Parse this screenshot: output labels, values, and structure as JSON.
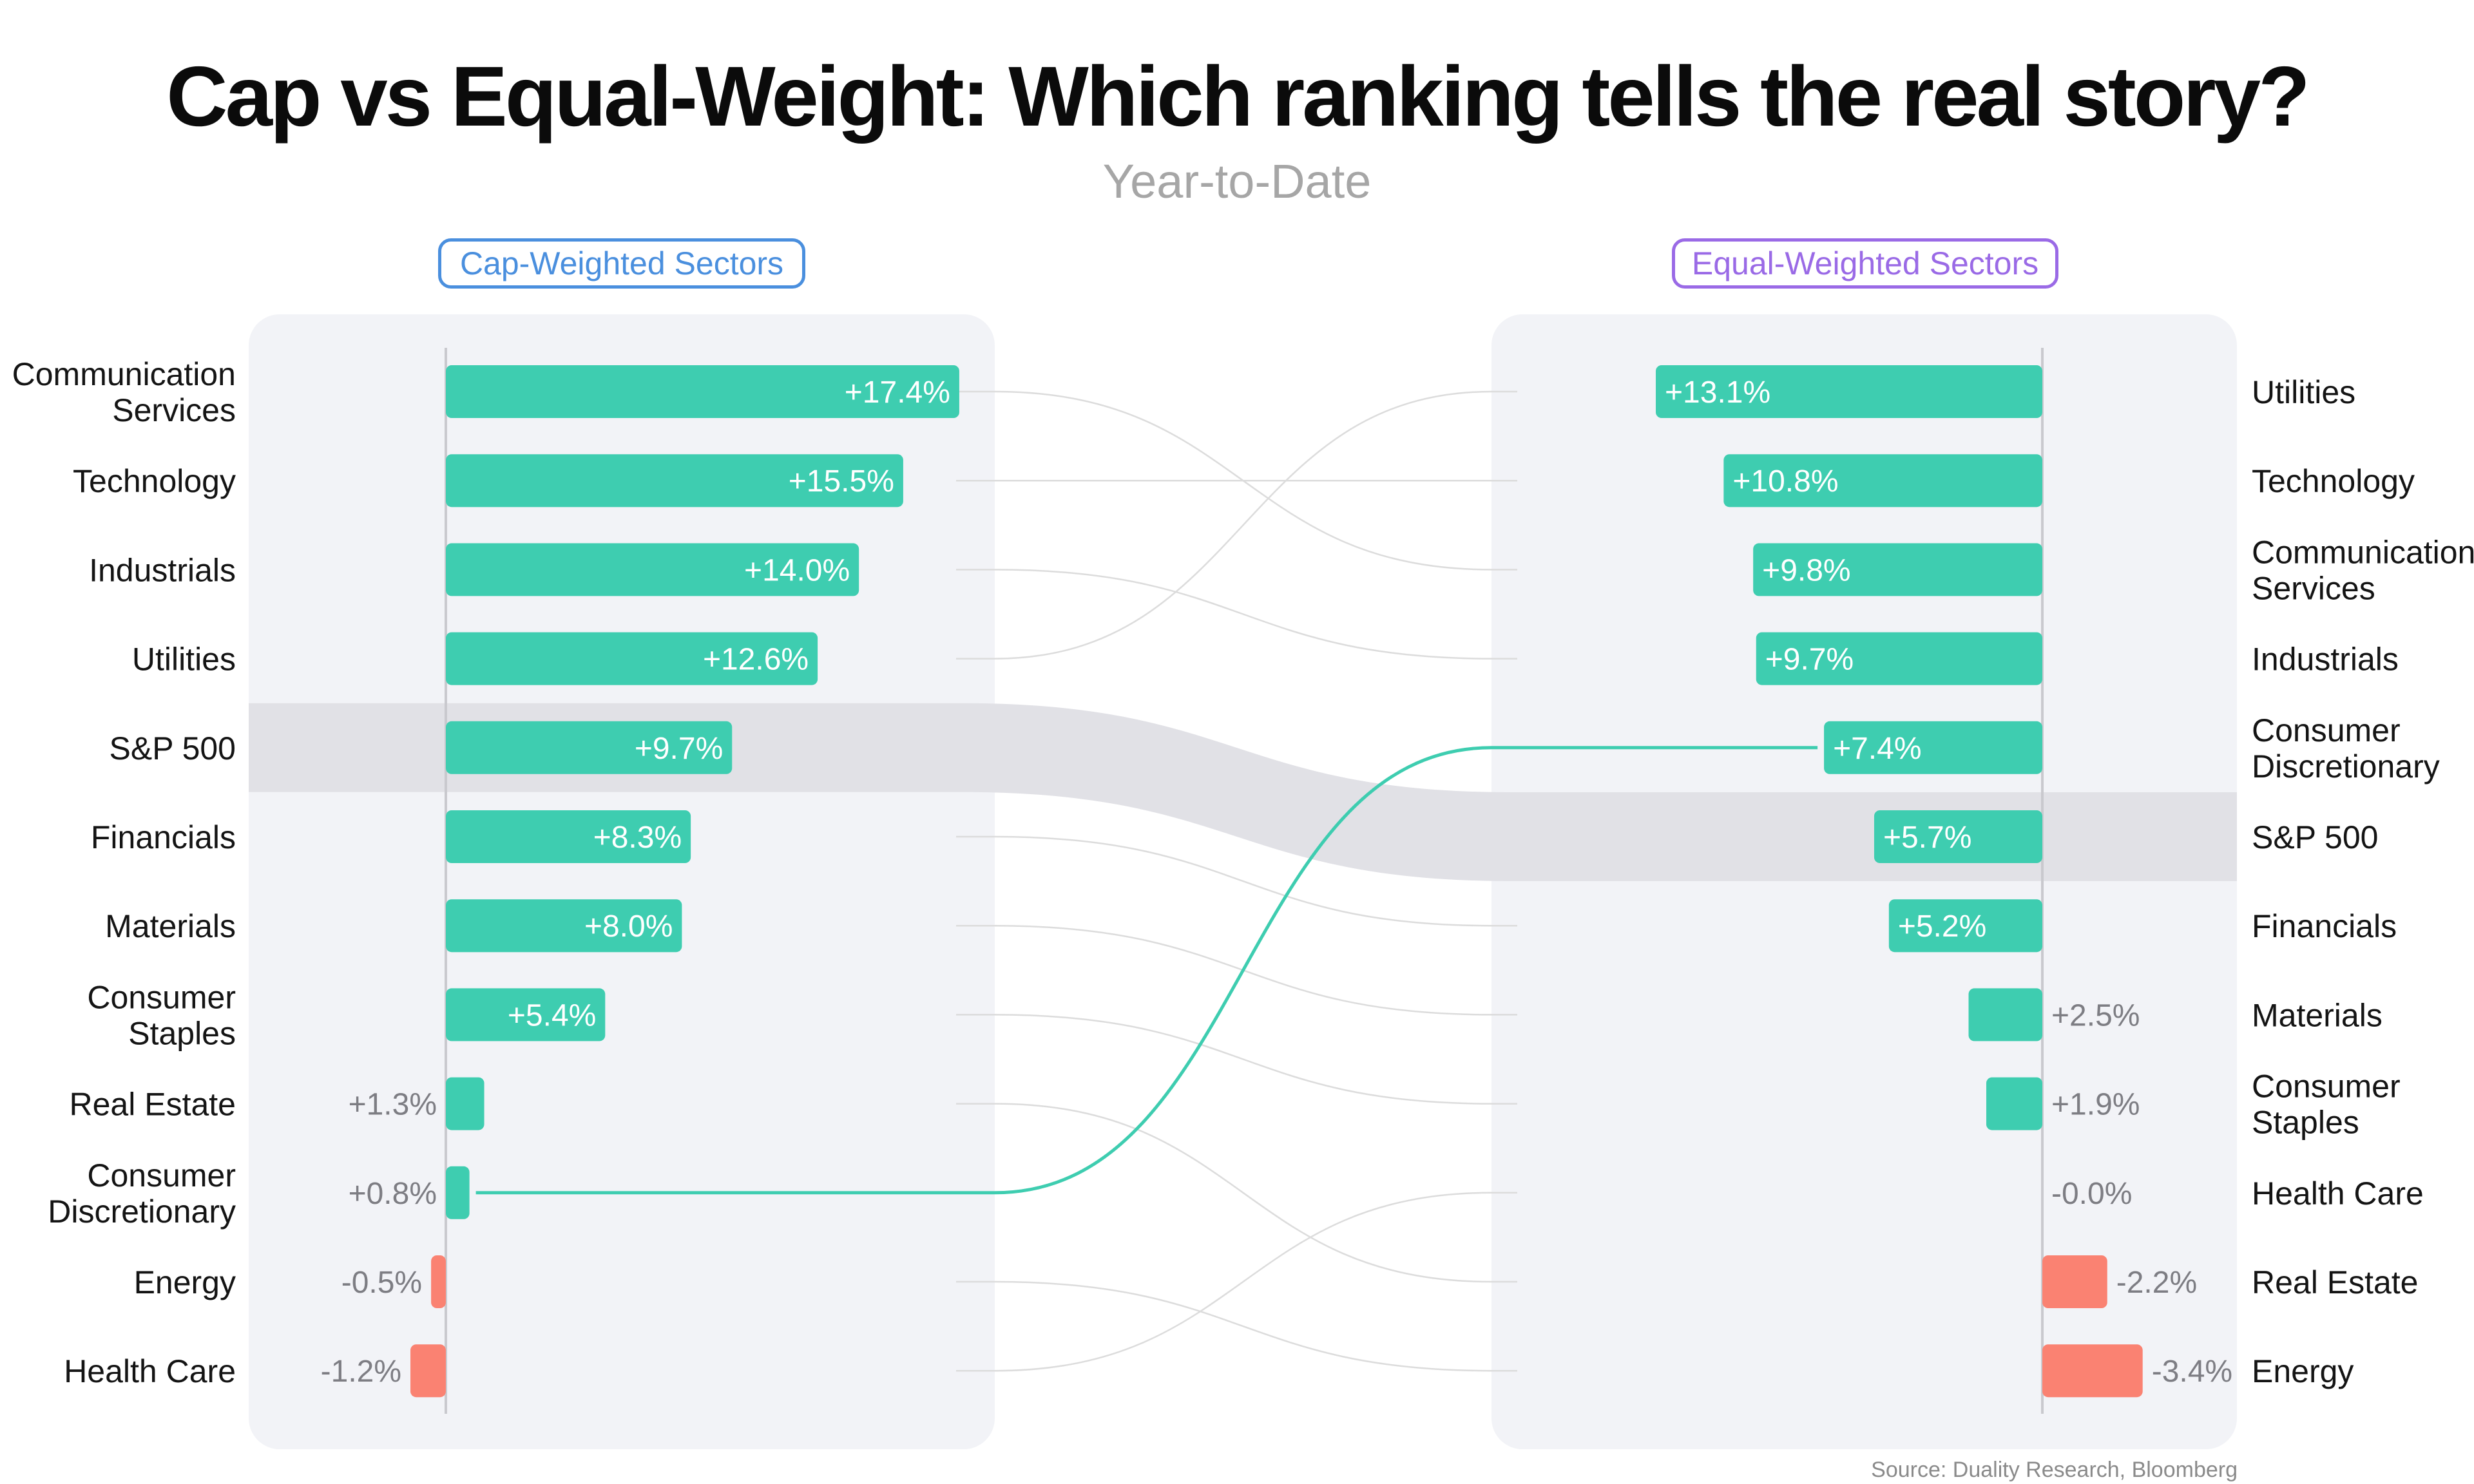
{
  "title": "Cap vs Equal-Weight: Which ranking tells the real story?",
  "subtitle": "Year-to-Date",
  "cap_label": "Cap-Weighted Sectors",
  "equal_label": "Equal-Weighted Sectors",
  "source": "Source: Duality Research, Bloomberg",
  "colors": {
    "positive": "#3ecdb0",
    "negative": "#fa8272",
    "highlight": "#3ecdb0",
    "panel": "#f2f3f7",
    "benchmark_band": "#e1e1e6",
    "connector": "#dcdcdc",
    "cap_accent": "#4a8fde",
    "equal_accent": "#9a6ae6"
  },
  "chart_data": [
    {
      "type": "bar",
      "title": "Cap-Weighted Sectors",
      "categories": [
        "Communication Services",
        "Technology",
        "Industrials",
        "Utilities",
        "S&P 500",
        "Financials",
        "Materials",
        "Consumer Staples",
        "Real Estate",
        "Consumer Discretionary",
        "Energy",
        "Health Care"
      ],
      "values": [
        17.4,
        15.5,
        14.0,
        12.6,
        9.7,
        8.3,
        8.0,
        5.4,
        1.3,
        0.8,
        -0.5,
        -1.2
      ],
      "labels": [
        "+17.4%",
        "+15.5%",
        "+14.0%",
        "+12.6%",
        "+9.7%",
        "+8.3%",
        "+8.0%",
        "+5.4%",
        "+1.3%",
        "+0.8%",
        "-0.5%",
        "-1.2%"
      ],
      "orientation": "horizontal"
    },
    {
      "type": "bar",
      "title": "Equal-Weighted Sectors",
      "categories": [
        "Utilities",
        "Technology",
        "Communication Services",
        "Industrials",
        "Consumer Discretionary",
        "S&P 500",
        "Financials",
        "Materials",
        "Consumer Staples",
        "Health Care",
        "Real Estate",
        "Energy"
      ],
      "values": [
        13.1,
        10.8,
        9.8,
        9.7,
        7.4,
        5.7,
        5.2,
        2.5,
        1.9,
        -0.0,
        -2.2,
        -3.4
      ],
      "labels": [
        "+13.1%",
        "+10.8%",
        "+9.8%",
        "+9.7%",
        "+7.4%",
        "+5.7%",
        "+5.2%",
        "+2.5%",
        "+1.9%",
        "-0.0%",
        "-2.2%",
        "-3.4%"
      ],
      "orientation": "horizontal",
      "direction": "bars extend leftward for positive values"
    }
  ],
  "benchmark": "S&P 500",
  "highlighted_sector": "Consumer Discretionary"
}
